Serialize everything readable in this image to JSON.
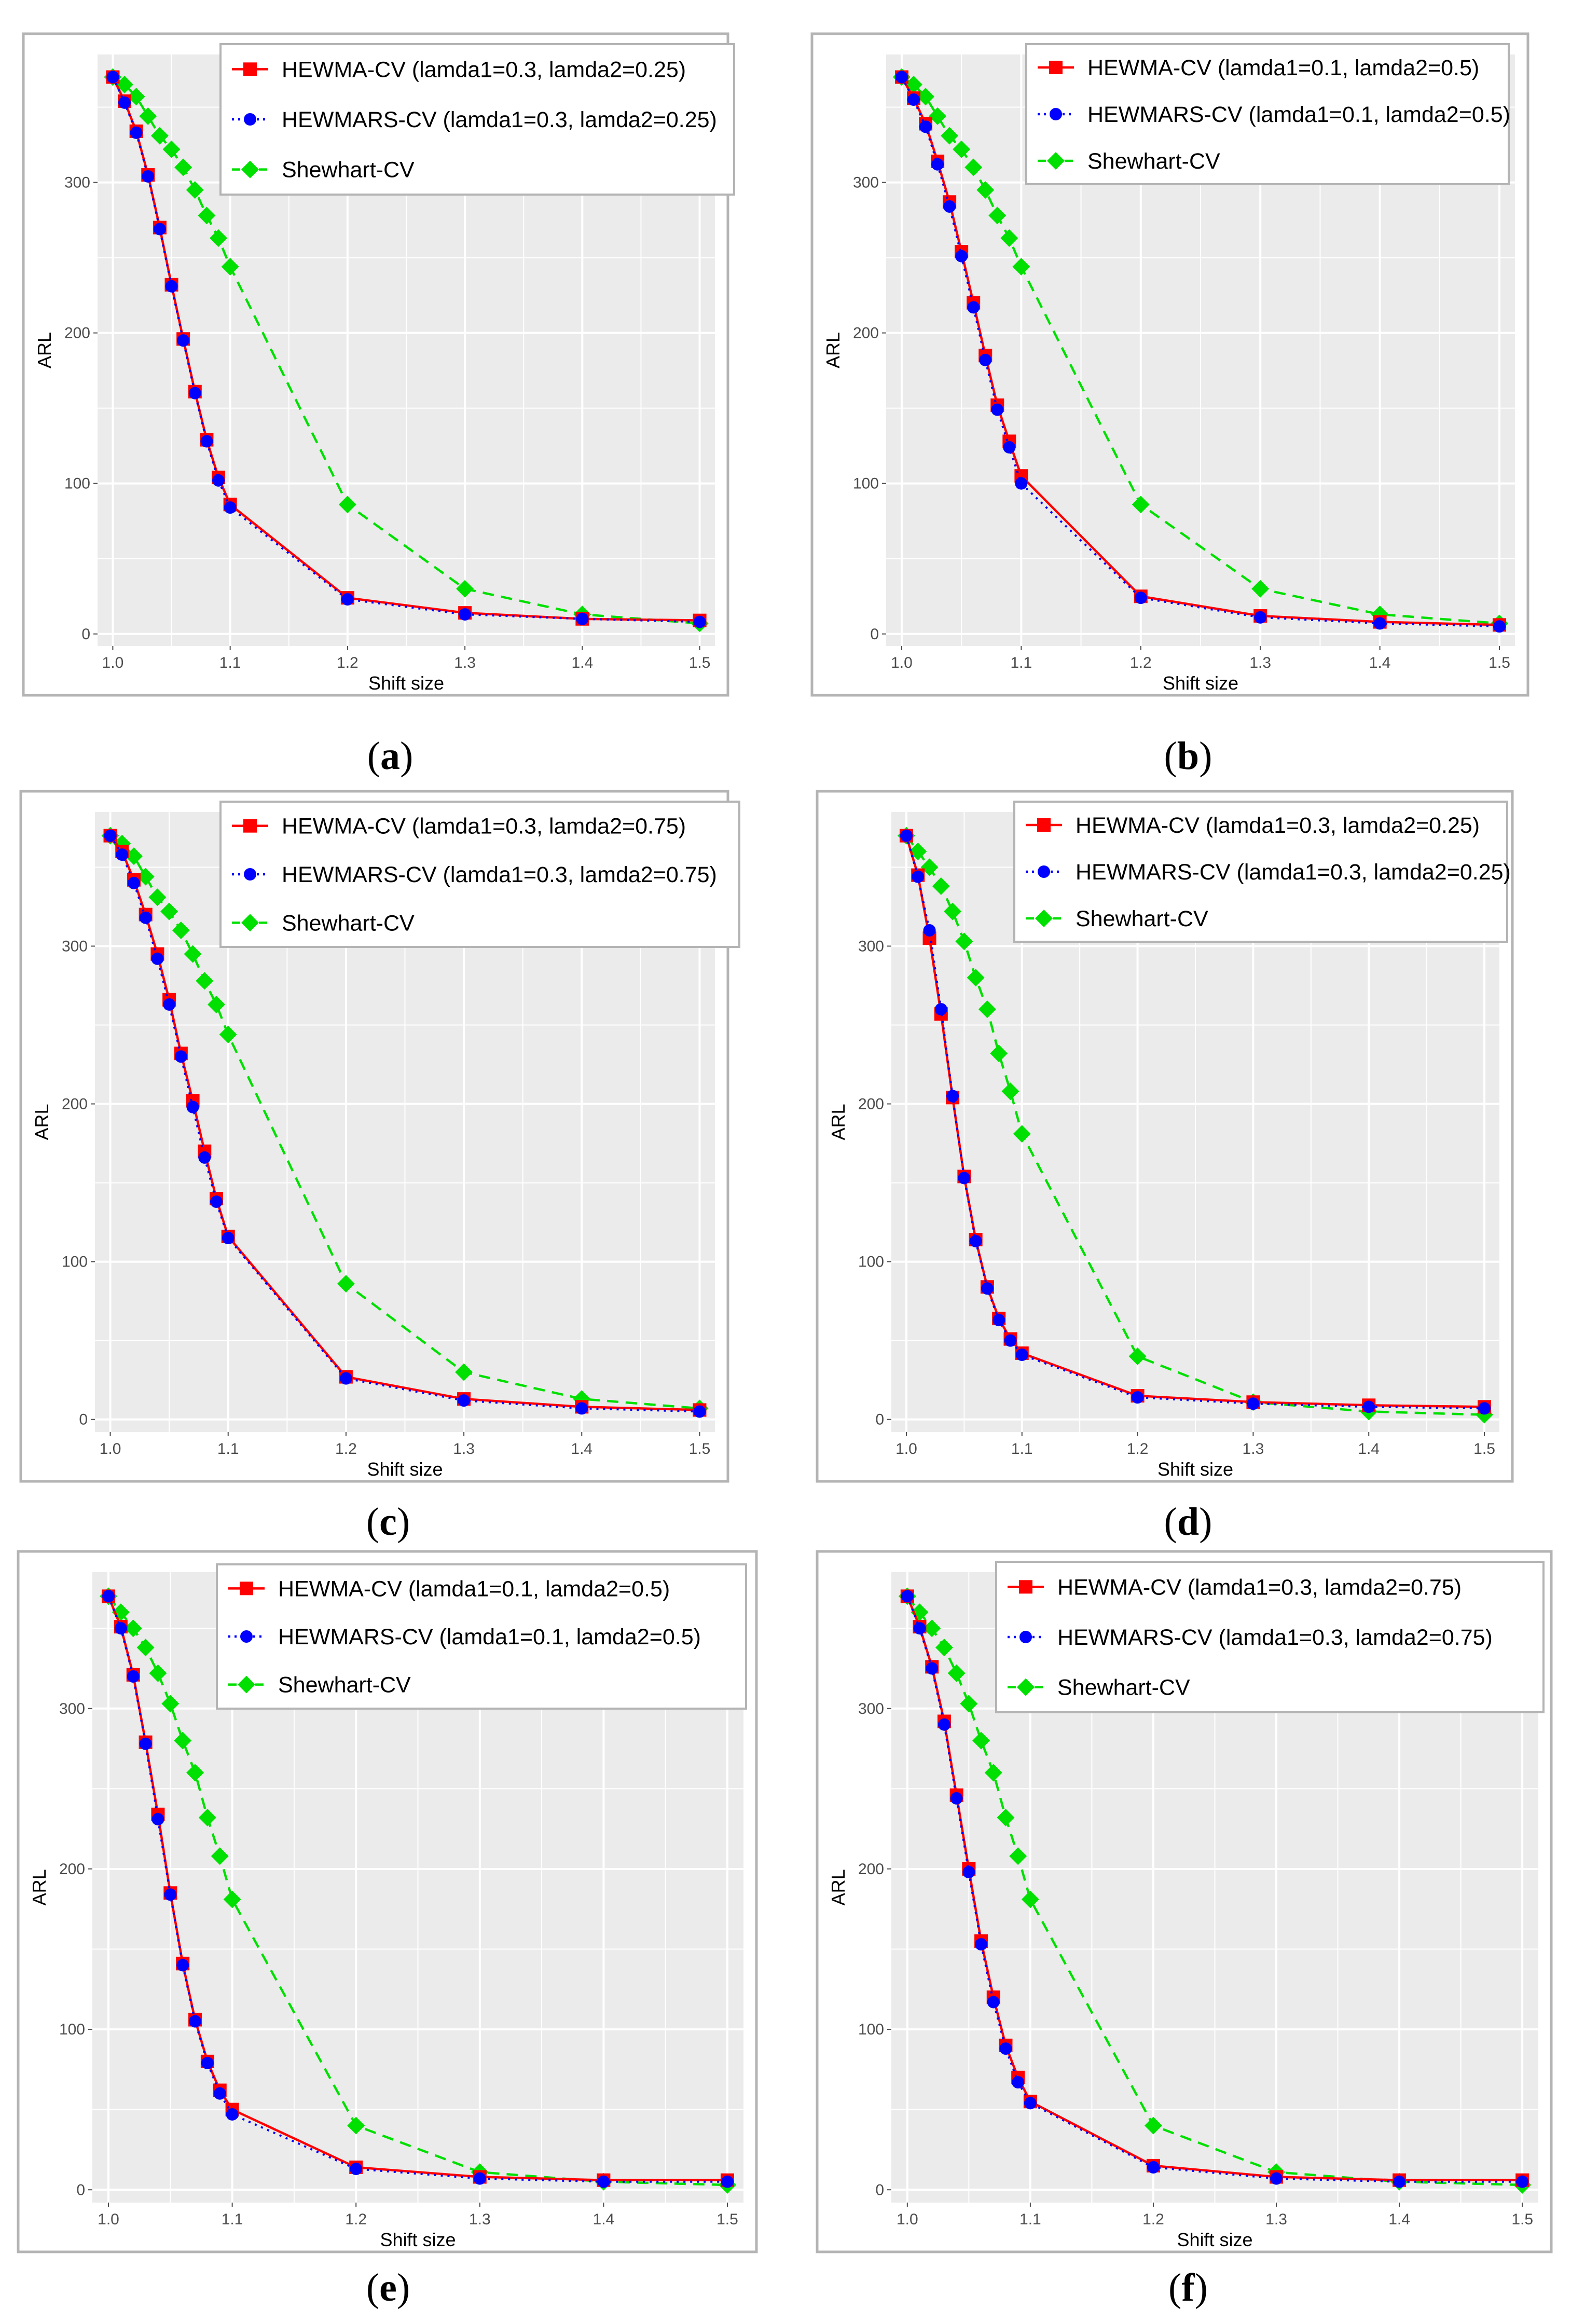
{
  "colors": {
    "hewma": "#ff0000",
    "hewmars": "#0000ff",
    "shewhart": "#00e000",
    "panel_bg": "#ebebeb",
    "grid": "#ffffff",
    "frame": "#b4b4b4"
  },
  "chart_data": [
    {
      "type": "line",
      "label": "a",
      "xlabel": "Shift size",
      "ylabel": "ARL",
      "xlim": [
        0.987,
        1.513
      ],
      "ylim": [
        -8,
        385
      ],
      "x_ticks": [
        1.0,
        1.1,
        1.2,
        1.3,
        1.4,
        1.5
      ],
      "x_tick_labels": [
        "1.0",
        "1.1",
        "1.2",
        "1.3",
        "1.4",
        "1.5"
      ],
      "y_ticks": [
        0,
        100,
        200,
        300
      ],
      "y_tick_labels": [
        "0",
        "100",
        "200",
        "300"
      ],
      "legend_position": "top-right",
      "x": [
        1.0,
        1.01,
        1.02,
        1.03,
        1.04,
        1.05,
        1.06,
        1.07,
        1.08,
        1.09,
        1.1,
        1.2,
        1.3,
        1.4,
        1.5
      ],
      "series": [
        {
          "name": "HEWMA-CV (lamda1=0.3, lamda2=0.25)",
          "marker": "square",
          "line": "solid",
          "values": [
            370,
            354,
            334,
            305,
            270,
            232,
            196,
            161,
            129,
            104,
            86,
            24,
            14,
            10,
            9
          ]
        },
        {
          "name": "HEWMARS-CV (lamda1=0.3, lamda2=0.25)",
          "marker": "circle",
          "line": "dotted",
          "values": [
            370,
            353,
            333,
            304,
            269,
            231,
            195,
            160,
            128,
            102,
            84,
            23,
            13,
            10,
            8
          ]
        },
        {
          "name": "Shewhart-CV",
          "marker": "diamond",
          "line": "dashed",
          "values": [
            370,
            365,
            357,
            344,
            331,
            322,
            310,
            295,
            278,
            263,
            244,
            86,
            30,
            13,
            7
          ]
        }
      ]
    },
    {
      "type": "line",
      "label": "b",
      "xlabel": "Shift size",
      "ylabel": "ARL",
      "xlim": [
        0.987,
        1.513
      ],
      "ylim": [
        -8,
        385
      ],
      "x_ticks": [
        1.0,
        1.1,
        1.2,
        1.3,
        1.4,
        1.5
      ],
      "x_tick_labels": [
        "1.0",
        "1.1",
        "1.2",
        "1.3",
        "1.4",
        "1.5"
      ],
      "y_ticks": [
        0,
        100,
        200,
        300
      ],
      "y_tick_labels": [
        "0",
        "100",
        "200",
        "300"
      ],
      "legend_position": "top-right",
      "x": [
        1.0,
        1.01,
        1.02,
        1.03,
        1.04,
        1.05,
        1.06,
        1.07,
        1.08,
        1.09,
        1.1,
        1.2,
        1.3,
        1.4,
        1.5
      ],
      "series": [
        {
          "name": "HEWMA-CV (lamda1=0.1, lamda2=0.5)",
          "marker": "square",
          "line": "solid",
          "values": [
            370,
            356,
            339,
            314,
            287,
            254,
            220,
            185,
            152,
            128,
            105,
            25,
            12,
            8,
            6
          ]
        },
        {
          "name": "HEWMARS-CV (lamda1=0.1, lamda2=0.5)",
          "marker": "circle",
          "line": "dotted",
          "values": [
            370,
            355,
            337,
            312,
            284,
            251,
            217,
            182,
            149,
            124,
            100,
            24,
            11,
            7,
            5
          ]
        },
        {
          "name": "Shewhart-CV",
          "marker": "diamond",
          "line": "dashed",
          "values": [
            370,
            365,
            357,
            344,
            331,
            322,
            310,
            295,
            278,
            263,
            244,
            86,
            30,
            13,
            7
          ]
        }
      ]
    },
    {
      "type": "line",
      "label": "c",
      "xlabel": "Shift size",
      "ylabel": "ARL",
      "xlim": [
        0.987,
        1.513
      ],
      "ylim": [
        -8,
        385
      ],
      "x_ticks": [
        1.0,
        1.1,
        1.2,
        1.3,
        1.4,
        1.5
      ],
      "x_tick_labels": [
        "1.0",
        "1.1",
        "1.2",
        "1.3",
        "1.4",
        "1.5"
      ],
      "y_ticks": [
        0,
        100,
        200,
        300
      ],
      "y_tick_labels": [
        "0",
        "100",
        "200",
        "300"
      ],
      "legend_position": "top-right",
      "x": [
        1.0,
        1.01,
        1.02,
        1.03,
        1.04,
        1.05,
        1.06,
        1.07,
        1.08,
        1.09,
        1.1,
        1.2,
        1.3,
        1.4,
        1.5
      ],
      "series": [
        {
          "name": "HEWMA-CV (lamda1=0.3, lamda2=0.75)",
          "marker": "square",
          "line": "solid",
          "values": [
            370,
            360,
            342,
            320,
            295,
            266,
            232,
            202,
            170,
            140,
            116,
            27,
            13,
            8,
            6
          ]
        },
        {
          "name": "HEWMARS-CV (lamda1=0.3, lamda2=0.75)",
          "marker": "circle",
          "line": "dotted",
          "values": [
            370,
            358,
            340,
            318,
            292,
            263,
            230,
            198,
            166,
            138,
            115,
            26,
            12,
            7,
            5
          ]
        },
        {
          "name": "Shewhart-CV",
          "marker": "diamond",
          "line": "dashed",
          "values": [
            370,
            365,
            357,
            344,
            331,
            322,
            310,
            295,
            278,
            263,
            244,
            86,
            30,
            13,
            7
          ]
        }
      ]
    },
    {
      "type": "line",
      "label": "d",
      "xlabel": "Shift size",
      "ylabel": "ARL",
      "xlim": [
        0.987,
        1.513
      ],
      "ylim": [
        -8,
        385
      ],
      "x_ticks": [
        1.0,
        1.1,
        1.2,
        1.3,
        1.4,
        1.5
      ],
      "x_tick_labels": [
        "1.0",
        "1.1",
        "1.2",
        "1.3",
        "1.4",
        "1.5"
      ],
      "y_ticks": [
        0,
        100,
        200,
        300
      ],
      "y_tick_labels": [
        "0",
        "100",
        "200",
        "300"
      ],
      "legend_position": "top-right",
      "x": [
        1.0,
        1.01,
        1.02,
        1.03,
        1.04,
        1.05,
        1.06,
        1.07,
        1.08,
        1.09,
        1.1,
        1.2,
        1.3,
        1.4,
        1.5
      ],
      "series": [
        {
          "name": "HEWMA-CV (lamda1=0.3, lamda2=0.25)",
          "marker": "square",
          "line": "solid",
          "values": [
            370,
            345,
            305,
            257,
            204,
            154,
            114,
            84,
            64,
            51,
            42,
            15,
            11,
            9,
            8
          ]
        },
        {
          "name": "HEWMARS-CV (lamda1=0.3, lamda2=0.25)",
          "marker": "circle",
          "line": "dotted",
          "values": [
            370,
            344,
            310,
            260,
            205,
            153,
            113,
            83,
            63,
            50,
            41,
            14,
            10,
            8,
            7
          ]
        },
        {
          "name": "Shewhart-CV",
          "marker": "diamond",
          "line": "dashed",
          "values": [
            370,
            360,
            350,
            338,
            322,
            303,
            280,
            260,
            232,
            208,
            181,
            40,
            11,
            5,
            3
          ]
        }
      ]
    },
    {
      "type": "line",
      "label": "e",
      "xlabel": "Shift size",
      "ylabel": "ARL",
      "xlim": [
        0.987,
        1.513
      ],
      "ylim": [
        -8,
        385
      ],
      "x_ticks": [
        1.0,
        1.1,
        1.2,
        1.3,
        1.4,
        1.5
      ],
      "x_tick_labels": [
        "1.0",
        "1.1",
        "1.2",
        "1.3",
        "1.4",
        "1.5"
      ],
      "y_ticks": [
        0,
        100,
        200,
        300
      ],
      "y_tick_labels": [
        "0",
        "100",
        "200",
        "300"
      ],
      "legend_position": "top-right",
      "x": [
        1.0,
        1.01,
        1.02,
        1.03,
        1.04,
        1.05,
        1.06,
        1.07,
        1.08,
        1.09,
        1.1,
        1.2,
        1.3,
        1.4,
        1.5
      ],
      "series": [
        {
          "name": "HEWMA-CV (lamda1=0.1, lamda2=0.5)",
          "marker": "square",
          "line": "solid",
          "values": [
            370,
            351,
            321,
            279,
            234,
            185,
            141,
            106,
            80,
            62,
            50,
            14,
            8,
            6,
            6
          ]
        },
        {
          "name": "HEWMARS-CV (lamda1=0.1, lamda2=0.5)",
          "marker": "circle",
          "line": "dotted",
          "values": [
            370,
            350,
            320,
            278,
            231,
            184,
            140,
            105,
            79,
            60,
            47,
            13,
            7,
            5,
            5
          ]
        },
        {
          "name": "Shewhart-CV",
          "marker": "diamond",
          "line": "dashed",
          "values": [
            370,
            360,
            350,
            338,
            322,
            303,
            280,
            260,
            232,
            208,
            181,
            40,
            11,
            5,
            3
          ]
        }
      ]
    },
    {
      "type": "line",
      "label": "f",
      "xlabel": "Shift size",
      "ylabel": "ARL",
      "xlim": [
        0.987,
        1.513
      ],
      "ylim": [
        -8,
        385
      ],
      "x_ticks": [
        1.0,
        1.1,
        1.2,
        1.3,
        1.4,
        1.5
      ],
      "x_tick_labels": [
        "1.0",
        "1.1",
        "1.2",
        "1.3",
        "1.4",
        "1.5"
      ],
      "y_ticks": [
        0,
        100,
        200,
        300
      ],
      "y_tick_labels": [
        "0",
        "100",
        "200",
        "300"
      ],
      "legend_position": "top-right",
      "x": [
        1.0,
        1.01,
        1.02,
        1.03,
        1.04,
        1.05,
        1.06,
        1.07,
        1.08,
        1.09,
        1.1,
        1.2,
        1.3,
        1.4,
        1.5
      ],
      "series": [
        {
          "name": "HEWMA-CV (lamda1=0.3, lamda2=0.75)",
          "marker": "square",
          "line": "solid",
          "values": [
            370,
            351,
            326,
            292,
            246,
            200,
            155,
            120,
            90,
            70,
            55,
            15,
            8,
            6,
            6
          ]
        },
        {
          "name": "HEWMARS-CV (lamda1=0.3, lamda2=0.75)",
          "marker": "circle",
          "line": "dotted",
          "values": [
            370,
            350,
            325,
            290,
            244,
            198,
            153,
            117,
            88,
            67,
            54,
            14,
            7,
            5,
            5
          ]
        },
        {
          "name": "Shewhart-CV",
          "marker": "diamond",
          "line": "dashed",
          "values": [
            370,
            360,
            350,
            338,
            322,
            303,
            280,
            260,
            232,
            208,
            181,
            40,
            11,
            5,
            3
          ]
        }
      ]
    }
  ]
}
